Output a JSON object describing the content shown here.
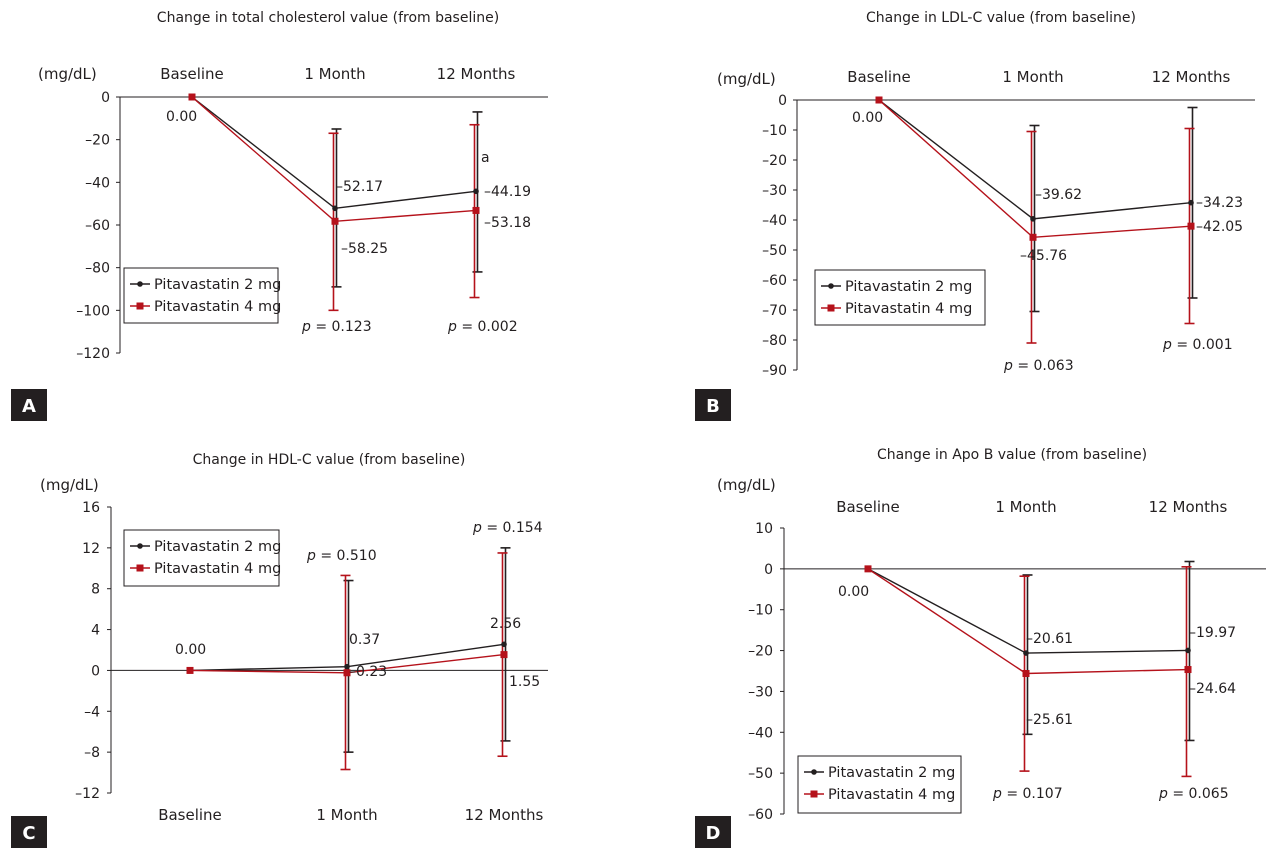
{
  "figure": {
    "colors": {
      "series_2mg": "#231f20",
      "series_4mg": "#b5121b",
      "axis": "#231f20",
      "panel_label_bg": "#231f20"
    }
  },
  "chart_data": [
    {
      "panel": "A",
      "type": "line",
      "title": "Change in total cholesterol value (from baseline)",
      "ylabel": "(mg/dL)",
      "ylim": [
        -120,
        0
      ],
      "yticks": [
        0,
        -20,
        -40,
        -60,
        -80,
        -100,
        -120
      ],
      "ytick_labels": [
        "0",
        "–20",
        "–40",
        "–60",
        "–80",
        "–100",
        "–120"
      ],
      "categories": [
        "Baseline",
        "1 Month",
        "12 Months"
      ],
      "category_axis": "top",
      "series": [
        {
          "name": "Pitavastatin 2 mg",
          "values": [
            0,
            -52.17,
            -44.19
          ],
          "error_low": [
            0,
            -89,
            -82
          ],
          "error_high": [
            0,
            -15,
            -7
          ]
        },
        {
          "name": "Pitavastatin 4 mg",
          "values": [
            0,
            -58.25,
            -53.18
          ],
          "error_low": [
            0,
            -100,
            -94
          ],
          "error_high": [
            0,
            -17,
            -13
          ]
        }
      ],
      "data_labels": [
        "0.00",
        "–52.17",
        "–58.25",
        "–44.19",
        "–53.18"
      ],
      "p_values": [
        "",
        "= 0.123",
        "= 0.002"
      ],
      "annotations": [
        "a"
      ],
      "legend": "lower-left"
    },
    {
      "panel": "B",
      "type": "line",
      "title": "Change in LDL-C value (from baseline)",
      "ylabel": "(mg/dL)",
      "ylim": [
        -90,
        0
      ],
      "yticks": [
        0,
        -10,
        -20,
        -30,
        -40,
        -50,
        -60,
        -70,
        -80,
        -90
      ],
      "ytick_labels": [
        "0",
        "–10",
        "–20",
        "–30",
        "–40",
        "–50",
        "–60",
        "–70",
        "–80",
        "–90"
      ],
      "categories": [
        "Baseline",
        "1 Month",
        "12 Months"
      ],
      "category_axis": "top",
      "series": [
        {
          "name": "Pitavastatin 2 mg",
          "values": [
            0,
            -39.62,
            -34.23
          ],
          "error_low": [
            0,
            -70.5,
            -66
          ],
          "error_high": [
            0,
            -8.5,
            -2.5
          ]
        },
        {
          "name": "Pitavastatin 4 mg",
          "values": [
            0,
            -45.76,
            -42.05
          ],
          "error_low": [
            0,
            -81,
            -74.5
          ],
          "error_high": [
            0,
            -10.5,
            -9.5
          ]
        }
      ],
      "data_labels": [
        "0.00",
        "–39.62",
        "–45.76",
        "–34.23",
        "–42.05"
      ],
      "p_values": [
        "",
        "= 0.063",
        "= 0.001"
      ],
      "legend": "lower-left"
    },
    {
      "panel": "C",
      "type": "line",
      "title": "Change in HDL-C value (from baseline)",
      "ylabel": "(mg/dL)",
      "ylim": [
        -12,
        16
      ],
      "yticks": [
        16,
        12,
        8,
        4,
        0,
        -4,
        -8,
        -12
      ],
      "ytick_labels": [
        "16",
        "12",
        "8",
        "4",
        "0",
        "–4",
        "–8",
        "–12"
      ],
      "categories": [
        "Baseline",
        "1 Month",
        "12 Months"
      ],
      "category_axis": "bottom",
      "series": [
        {
          "name": "Pitavastatin 2 mg",
          "values": [
            0,
            0.37,
            2.56
          ],
          "error_low": [
            0,
            -8,
            -6.9
          ],
          "error_high": [
            0,
            8.8,
            12
          ]
        },
        {
          "name": "Pitavastatin 4 mg",
          "values": [
            0,
            -0.23,
            1.55
          ],
          "error_low": [
            0,
            -9.7,
            -8.4
          ],
          "error_high": [
            0,
            9.3,
            11.5
          ]
        }
      ],
      "data_labels": [
        "0.00",
        "0.37",
        "–0.23",
        "2.56",
        "1.55"
      ],
      "p_values": [
        "",
        "= 0.510",
        "= 0.154"
      ],
      "legend": "top-left"
    },
    {
      "panel": "D",
      "type": "line",
      "title": "Change in Apo B value (from baseline)",
      "ylabel": "(mg/dL)",
      "ylim": [
        -60,
        10
      ],
      "yticks": [
        10,
        0,
        -10,
        -20,
        -30,
        -40,
        -50,
        -60
      ],
      "ytick_labels": [
        "10",
        "0",
        "–10",
        "–20",
        "–30",
        "–40",
        "–50",
        "–60"
      ],
      "categories": [
        "Baseline",
        "1 Month",
        "12 Months"
      ],
      "category_axis": "top",
      "series": [
        {
          "name": "Pitavastatin 2 mg",
          "values": [
            0,
            -20.61,
            -19.97
          ],
          "error_low": [
            0,
            -40.5,
            -42
          ],
          "error_high": [
            0,
            -1.5,
            1.8
          ]
        },
        {
          "name": "Pitavastatin 4 mg",
          "values": [
            0,
            -25.61,
            -24.64
          ],
          "error_low": [
            0,
            -49.5,
            -50.8
          ],
          "error_high": [
            0,
            -1.8,
            0.5
          ]
        }
      ],
      "data_labels": [
        "0.00",
        "–20.61",
        "–25.61",
        "–19.97",
        "–24.64"
      ],
      "p_values": [
        "",
        "= 0.107",
        "= 0.065"
      ],
      "legend": "lower-left"
    }
  ]
}
